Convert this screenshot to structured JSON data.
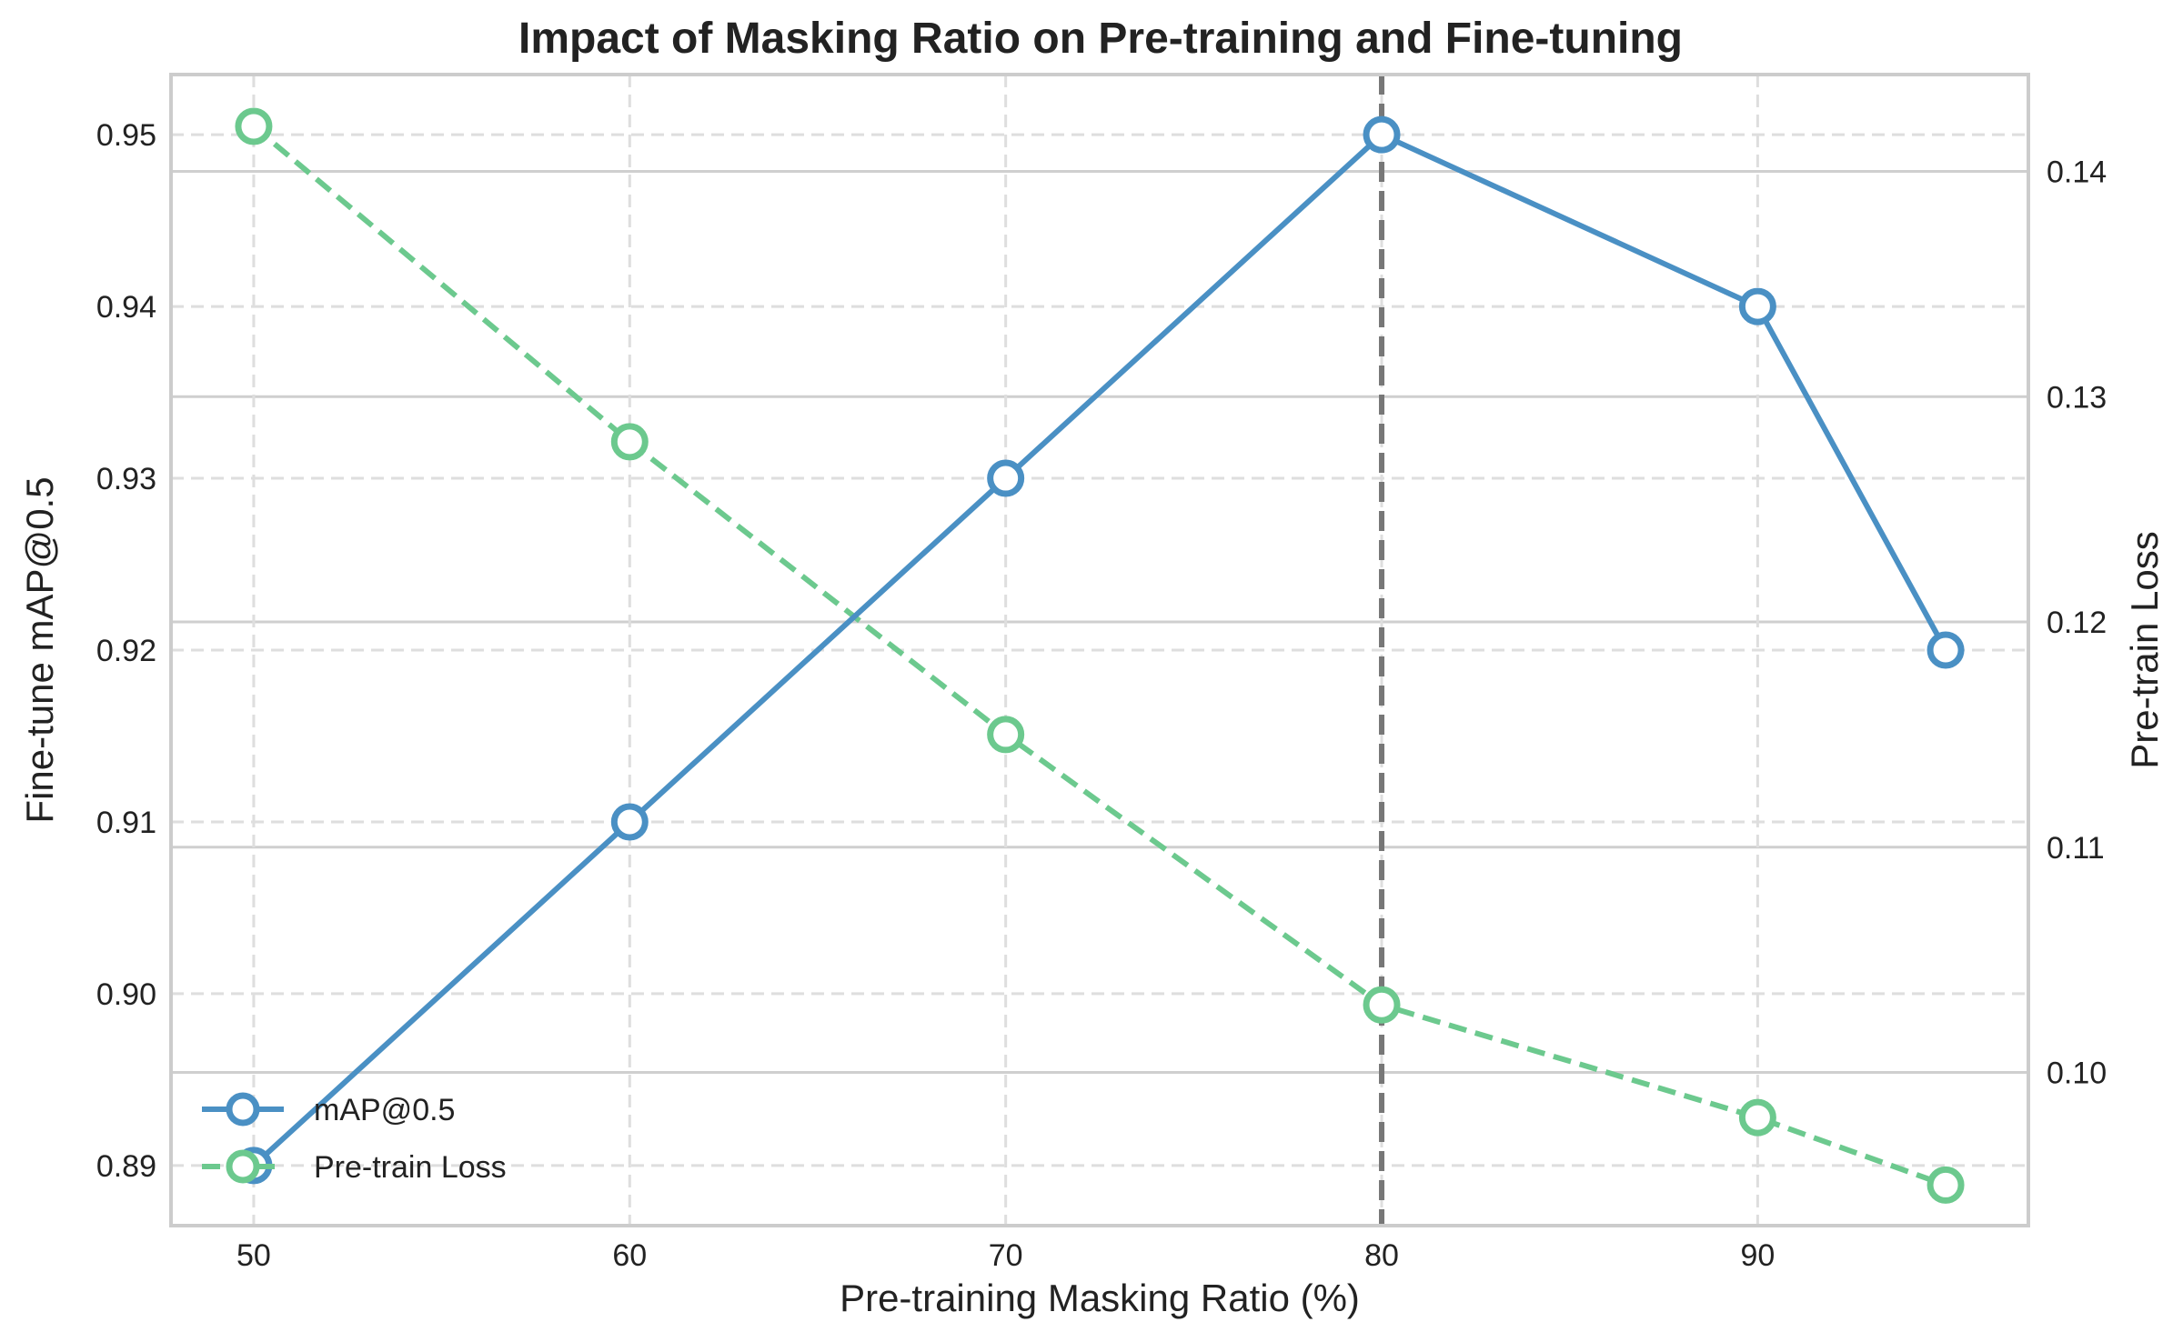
{
  "chart_data": {
    "type": "line",
    "title": "Impact of Masking Ratio on Pre-training and Fine-tuning",
    "xlabel": "Pre-training Masking Ratio (%)",
    "ylabel_left": "Fine-tune mAP@0.5",
    "ylabel_right": "Pre-train Loss",
    "x": [
      50,
      60,
      70,
      80,
      90,
      95
    ],
    "x_ticks": [
      50,
      60,
      70,
      80,
      90
    ],
    "x_tick_labels": [
      "50",
      "60",
      "70",
      "80",
      "90"
    ],
    "xlim": [
      47.8,
      97.2
    ],
    "left_axis": {
      "ylim": [
        0.8865,
        0.9535
      ],
      "ticks": [
        0.89,
        0.9,
        0.91,
        0.92,
        0.93,
        0.94,
        0.95
      ],
      "tick_labels": [
        "0.89",
        "0.90",
        "0.91",
        "0.92",
        "0.93",
        "0.94",
        "0.95"
      ]
    },
    "right_axis": {
      "ylim": [
        0.0932,
        0.1443
      ],
      "ticks": [
        0.1,
        0.11,
        0.12,
        0.13,
        0.14
      ],
      "tick_labels": [
        "0.10",
        "0.11",
        "0.12",
        "0.13",
        "0.14"
      ]
    },
    "series": [
      {
        "name": "mAP@0.5",
        "axis": "left",
        "style": "solid",
        "color": "#4a90c4",
        "values": [
          0.89,
          0.91,
          0.93,
          0.95,
          0.94,
          0.92
        ]
      },
      {
        "name": "Pre-train Loss",
        "axis": "right",
        "style": "dashed",
        "color": "#6cc98e",
        "values": [
          0.142,
          0.128,
          0.115,
          0.103,
          0.098,
          0.095
        ]
      }
    ],
    "annotation": {
      "type": "vertical-dashed-line",
      "x": 80,
      "color": "#777777"
    },
    "legend": {
      "placement": "lower-left"
    },
    "grid": true
  }
}
